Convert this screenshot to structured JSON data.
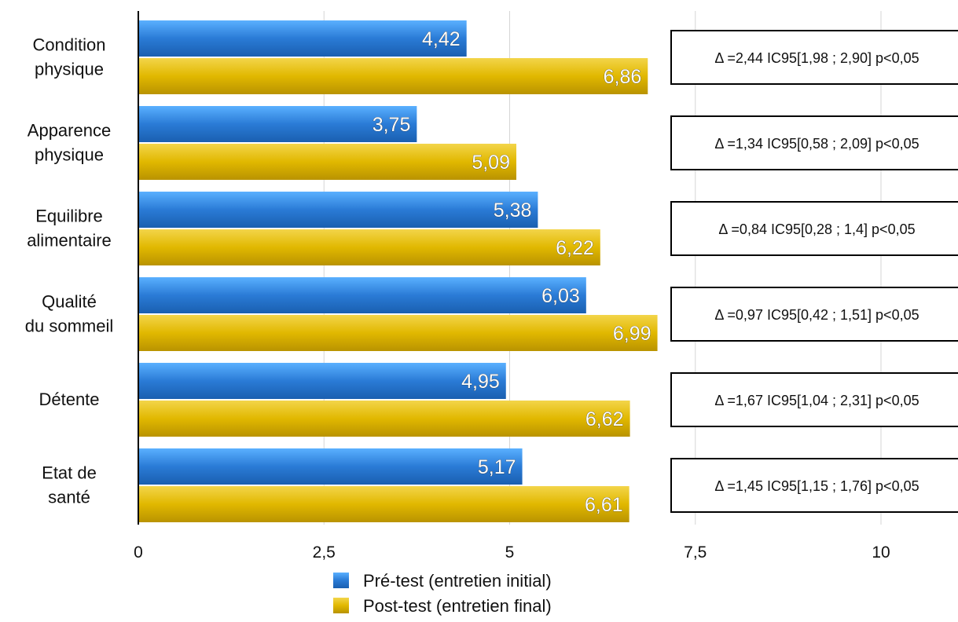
{
  "chart_data": {
    "type": "bar",
    "orientation": "horizontal",
    "categories": [
      [
        "Condition",
        "physique"
      ],
      [
        "Apparence",
        "physique"
      ],
      [
        "Equilibre",
        "alimentaire"
      ],
      [
        "Qualité",
        "du sommeil"
      ],
      [
        "Détente"
      ],
      [
        "Etat de",
        "santé"
      ]
    ],
    "series": [
      {
        "name": "Pré-test (entretien initial)",
        "color": "#2a7bd6",
        "values": [
          4.42,
          3.75,
          5.38,
          6.03,
          4.95,
          5.17
        ],
        "labels": [
          "4,42",
          "3,75",
          "5,38",
          "6,03",
          "4,95",
          "5,17"
        ]
      },
      {
        "name": "Post-test (entretien final)",
        "color": "#e1b800",
        "values": [
          6.86,
          5.09,
          6.22,
          6.99,
          6.62,
          6.61
        ],
        "labels": [
          "6,86",
          "5,09",
          "6,22",
          "6,99",
          "6,62",
          "6,61"
        ]
      }
    ],
    "xlim": [
      0,
      10
    ],
    "ticks": [
      0,
      2.5,
      5,
      7.5,
      10
    ],
    "tick_labels": [
      "0",
      "2,5",
      "5",
      "7,5",
      "10"
    ],
    "grid": true,
    "legend": "bottom",
    "annotations": [
      "Δ =2,44 IC95[1,98 ; 2,90] p<0,05",
      "Δ =1,34 IC95[0,58 ; 2,09] p<0,05",
      "Δ =0,84 IC95[0,28 ; 1,4] p<0,05",
      "Δ =0,97 IC95[0,42 ; 1,51] p<0,05",
      "Δ =1,67 IC95[1,04 ; 2,31] p<0,05",
      "Δ =1,45 IC95[1,15 ; 1,76] p<0,05"
    ],
    "title": "",
    "xlabel": "",
    "ylabel": ""
  }
}
